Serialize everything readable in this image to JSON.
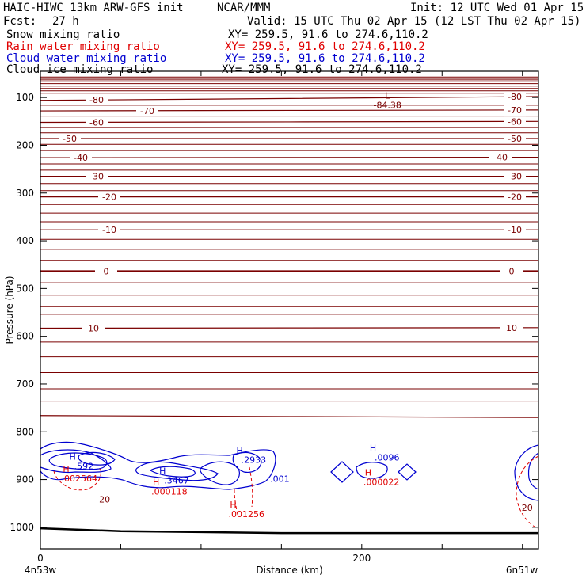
{
  "header": {
    "model": "HAIC-HIWC 13km ARW-GFS init",
    "center": "NCAR/MMM",
    "init": "Init: 12 UTC Wed 01 Apr 15",
    "fcst_label": "Fcst:",
    "fcst_value": "27 h",
    "valid": "Valid: 15 UTC Thu 02 Apr 15 (12 LST Thu 02 Apr 15)",
    "fields": [
      {
        "name": "Snow mixing ratio",
        "xy": "XY= 259.5, 91.6 to 274.6,110.2",
        "color": "#000000"
      },
      {
        "name": "Rain water mixing ratio",
        "xy": "XY= 259.5, 91.6 to 274.6,110.2",
        "color": "#e00000"
      },
      {
        "name": "Cloud water mixing ratio",
        "xy": "XY= 259.5, 91.6 to 274.6,110.2",
        "color": "#0000d0"
      },
      {
        "name": "Cloud ice mixing ratio",
        "xy": "XY= 259.5, 91.6 to 274.6,110.2",
        "color": "#000000"
      }
    ]
  },
  "chart_data": {
    "type": "contour-cross-section",
    "xlabel": "Distance (km)",
    "ylabel": "Pressure (hPa)",
    "xlim": [
      0,
      310
    ],
    "ylim": [
      1045,
      45
    ],
    "x_ticks": [
      0,
      200
    ],
    "x_minor_step": 50,
    "y_ticks": [
      100,
      200,
      300,
      400,
      500,
      600,
      700,
      800,
      900,
      1000
    ],
    "left_endpoint": "4n53w",
    "right_endpoint": "6n51w",
    "temperature_isotherms": {
      "color": "#7a0000",
      "levels": [
        {
          "label": "-80",
          "p_left": 106,
          "p_right": 98
        },
        {
          "label": "-70",
          "p_left": 128,
          "p_right": 126
        },
        {
          "label": "-60",
          "p_left": 152,
          "p_right": 150
        },
        {
          "label": "-50",
          "p_left": 186,
          "p_right": 186
        },
        {
          "label": "-40",
          "p_left": 226,
          "p_right": 225
        },
        {
          "label": "-30",
          "p_left": 265,
          "p_right": 265
        },
        {
          "label": "-20",
          "p_left": 308,
          "p_right": 308
        },
        {
          "label": "-10",
          "p_left": 377,
          "p_right": 377
        },
        {
          "label": "0",
          "p_left": 464,
          "p_right": 464
        },
        {
          "label": "10",
          "p_left": 583,
          "p_right": 582
        },
        {
          "label": "20",
          "p_left": 766,
          "p_right": 770
        }
      ],
      "extra_lines_p": [
        57,
        60,
        63,
        67,
        71,
        76,
        81,
        86,
        91,
        116,
        139,
        163,
        174,
        198,
        211,
        239,
        252,
        280,
        295,
        324,
        342,
        360,
        397,
        418,
        441,
        488,
        514,
        538,
        554,
        612,
        643,
        676,
        710,
        736
      ]
    },
    "minimum_label": {
      "text": "L",
      "value": "-84.38",
      "x_km": 214,
      "p": 102
    },
    "cloud_water": {
      "color": "#0000d0",
      "maxima": [
        {
          "label": "H",
          "value": ".592",
          "x_km": 20,
          "p": 875
        },
        {
          "label": "H",
          "value": ".3467",
          "x_km": 76,
          "p": 905
        },
        {
          "label": "H",
          "value": ".2933",
          "x_km": 124,
          "p": 862
        },
        {
          "label": "H",
          "value": ".0096",
          "x_km": 207,
          "p": 857
        }
      ],
      "labels": [
        {
          "text": ".001",
          "x_km": 143,
          "p": 905
        }
      ]
    },
    "rain_water": {
      "color": "#e00000",
      "maxima": [
        {
          "label": "H",
          "value": ".002564",
          "x_km": 16,
          "p": 891
        },
        {
          "label": "H",
          "value": ".000118",
          "x_km": 72,
          "p": 918
        },
        {
          "label": "H",
          "value": ".001256",
          "x_km": 120,
          "p": 965
        },
        {
          "label": "H",
          "value": ".000022",
          "x_km": 204,
          "p": 898
        }
      ]
    },
    "other_labels": [
      {
        "text": "20",
        "x_km": 40,
        "p": 948,
        "color": "#7a0000"
      },
      {
        "text": "20",
        "x_km": 303,
        "p": 965,
        "color": "#7a0000"
      }
    ],
    "surface_line": {
      "color": "#000000",
      "x_km": [
        0,
        50,
        100,
        150,
        200,
        250,
        310
      ],
      "p": [
        1002,
        1008,
        1010,
        1012,
        1012,
        1012,
        1012
      ]
    }
  }
}
